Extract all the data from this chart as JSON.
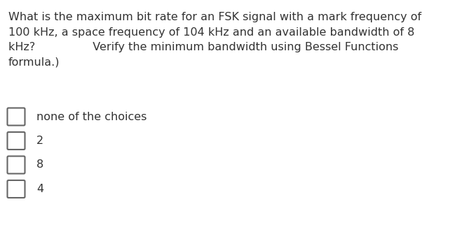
{
  "question_lines": [
    "What is the maximum bit rate for an FSK signal with a mark frequency of",
    "100 kHz, a space frequency of 104 kHz and an available bandwidth of 8",
    "kHz?                Verify the minimum bandwidth using Bessel Functions",
    "formula.)"
  ],
  "choices": [
    "none of the choices",
    "2",
    "8",
    "4"
  ],
  "bg_color": "#ffffff",
  "text_color": "#333333",
  "font_size_question": 11.5,
  "font_size_choices": 11.5,
  "checkbox_color": "#666666"
}
